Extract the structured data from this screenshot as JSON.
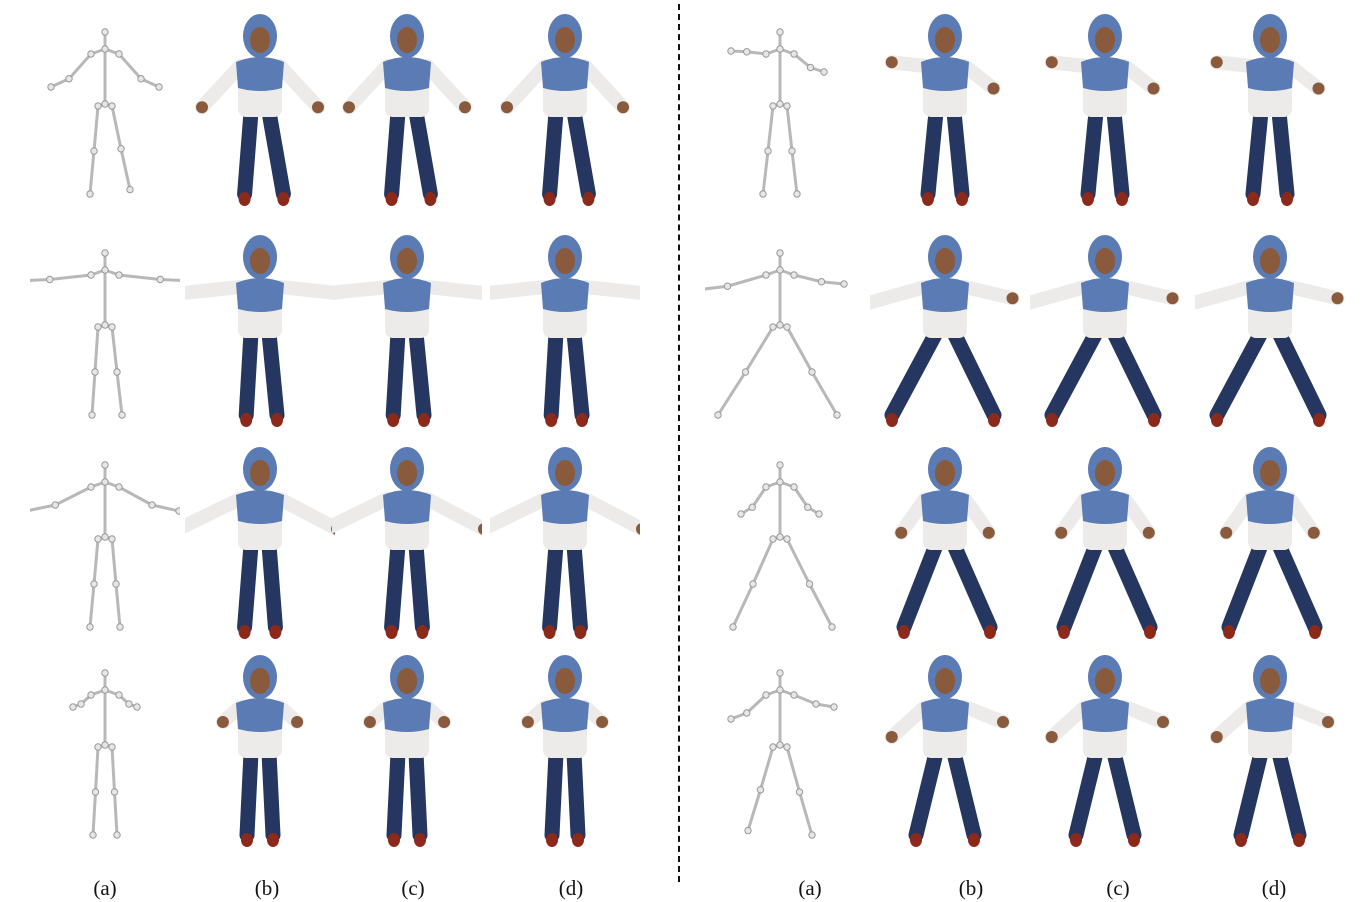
{
  "column_labels": {
    "left": [
      "(a)",
      "(b)",
      "(c)",
      "(d)"
    ],
    "right": [
      "(a)",
      "(b)",
      "(c)",
      "(d)"
    ]
  },
  "colors": {
    "background": "#ffffff",
    "skeleton": "#b8b8b8",
    "joint": "#e6e6e6",
    "hood": "#5a7bb3",
    "shirt_white": "#ecebe9",
    "jeans": "#253660",
    "skin": "#8a5a3c",
    "shoe": "#8b2a1a",
    "divider": "#111111"
  },
  "panels": {
    "left": {
      "rows": 4,
      "columns": 4
    },
    "right": {
      "rows": 4,
      "columns": 4
    }
  }
}
